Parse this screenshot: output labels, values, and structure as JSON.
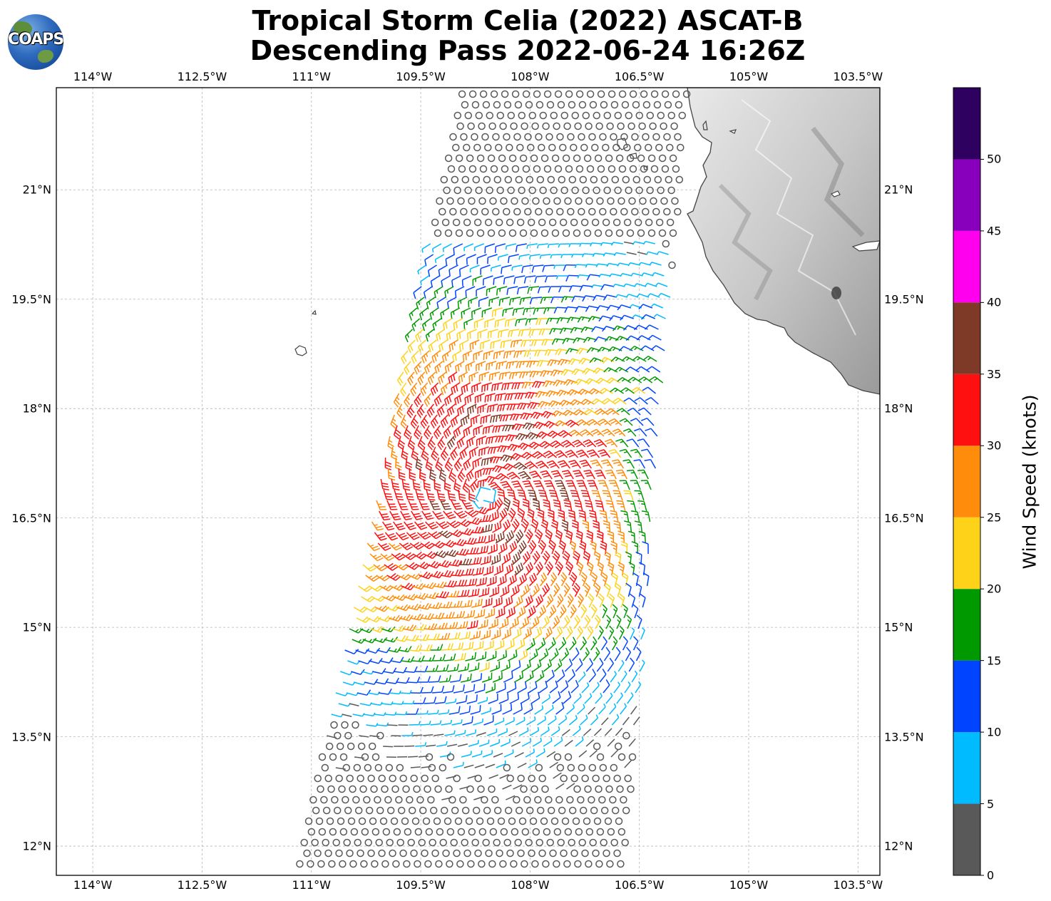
{
  "title": {
    "line1": "Tropical Storm Celia (2022) ASCAT-B",
    "line2": "Descending Pass 2022-06-24 16:26Z"
  },
  "logo": {
    "text": "COAPS",
    "icon": "earth-globe-logo"
  },
  "map": {
    "lon_range": [
      -114.5,
      -103.2
    ],
    "lat_range": [
      11.6,
      22.4
    ],
    "grid": true,
    "coastline_color": "#444444",
    "land_fill": "terrain-grayscale",
    "lon_ticks": [
      {
        "value": -114,
        "label": "114°W"
      },
      {
        "value": -112.5,
        "label": "112.5°W"
      },
      {
        "value": -111,
        "label": "111°W"
      },
      {
        "value": -109.5,
        "label": "109.5°W"
      },
      {
        "value": -108,
        "label": "108°W"
      },
      {
        "value": -106.5,
        "label": "106.5°W"
      },
      {
        "value": -105,
        "label": "105°W"
      },
      {
        "value": -103.5,
        "label": "103.5°W"
      }
    ],
    "lat_ticks": [
      {
        "value": 21,
        "label": "21°N"
      },
      {
        "value": 19.5,
        "label": "19.5°N"
      },
      {
        "value": 18,
        "label": "18°N"
      },
      {
        "value": 16.5,
        "label": "16.5°N"
      },
      {
        "value": 15,
        "label": "15°N"
      },
      {
        "value": 13.5,
        "label": "13.5°N"
      },
      {
        "value": 12,
        "label": "12°N"
      }
    ],
    "storm_center": {
      "lon": -108.6,
      "lat": 16.8
    },
    "wind_barbs": "cyclonic wind field, strongest (30-35 kt) near center"
  },
  "colorbar": {
    "title": "Wind Speed (knots)",
    "bins": [
      {
        "from": 0,
        "to": 5,
        "color": "#595959"
      },
      {
        "from": 5,
        "to": 10,
        "color": "#00bbff"
      },
      {
        "from": 10,
        "to": 15,
        "color": "#0044ff"
      },
      {
        "from": 15,
        "to": 20,
        "color": "#009a00"
      },
      {
        "from": 20,
        "to": 25,
        "color": "#ffd21a"
      },
      {
        "from": 25,
        "to": 30,
        "color": "#ff8c0a"
      },
      {
        "from": 30,
        "to": 35,
        "color": "#ff1010"
      },
      {
        "from": 35,
        "to": 40,
        "color": "#7f3a27"
      },
      {
        "from": 40,
        "to": 45,
        "color": "#ff00ee"
      },
      {
        "from": 45,
        "to": 50,
        "color": "#8800bb"
      },
      {
        "from": 50,
        "to": 55,
        "color": "#2e0060"
      }
    ],
    "tick_labels": [
      "0",
      "5",
      "10",
      "15",
      "20",
      "25",
      "30",
      "35",
      "40",
      "45",
      "50"
    ]
  }
}
